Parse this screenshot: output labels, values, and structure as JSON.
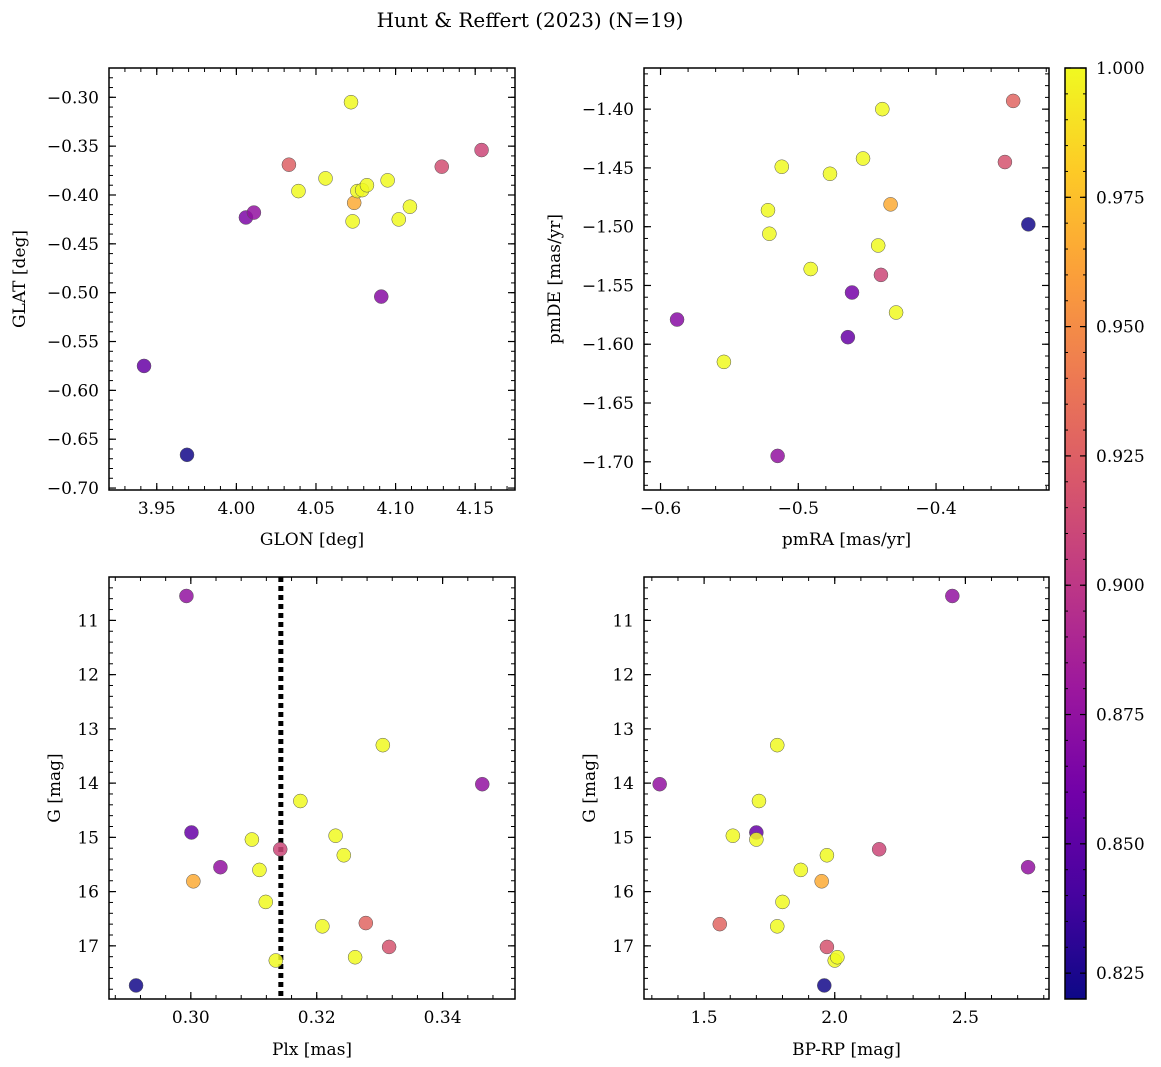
{
  "figure": {
    "title": "Hunt & Reffert (2023) (N=19)"
  },
  "colormap": {
    "name": "plasma",
    "range": [
      0.82,
      1.0
    ],
    "ticks": [
      "0.825",
      "0.850",
      "0.875",
      "0.900",
      "0.925",
      "0.950",
      "0.975",
      "1.000"
    ],
    "tick_values": [
      0.825,
      0.85,
      0.875,
      0.9,
      0.925,
      0.95,
      0.975,
      1.0
    ],
    "stops": [
      "#0d0887",
      "#46039f",
      "#7201a8",
      "#9c179e",
      "#bd3786",
      "#d8576b",
      "#ed7953",
      "#fb9f3a",
      "#fdca26",
      "#f0f921"
    ]
  },
  "chart_data": [
    {
      "type": "scatter",
      "id": "glon-glat",
      "xlabel": "GLON [deg]",
      "ylabel": "GLAT [deg]",
      "xlim": [
        3.92,
        4.175
      ],
      "ylim": [
        -0.702,
        -0.27
      ],
      "y_inverted": false,
      "xticks": [
        3.95,
        4.0,
        4.05,
        4.1,
        4.15
      ],
      "xtick_labels": [
        "3.95",
        "4.00",
        "4.05",
        "4.10",
        "4.15"
      ],
      "yticks": [
        -0.7,
        -0.65,
        -0.6,
        -0.55,
        -0.5,
        -0.45,
        -0.4,
        -0.35,
        -0.3
      ],
      "ytick_labels": [
        "−0.70",
        "−0.65",
        "−0.60",
        "−0.55",
        "−0.50",
        "−0.45",
        "−0.40",
        "−0.35",
        "−0.30"
      ],
      "points": [
        {
          "x": 3.942,
          "y": -0.575,
          "c": 0.855
        },
        {
          "x": 3.969,
          "y": -0.666,
          "c": 0.822
        },
        {
          "x": 4.006,
          "y": -0.423,
          "c": 0.865
        },
        {
          "x": 4.011,
          "y": -0.418,
          "c": 0.875
        },
        {
          "x": 4.033,
          "y": -0.369,
          "c": 0.925
        },
        {
          "x": 4.039,
          "y": -0.396,
          "c": 1.0
        },
        {
          "x": 4.056,
          "y": -0.383,
          "c": 1.0
        },
        {
          "x": 4.072,
          "y": -0.305,
          "c": 1.0
        },
        {
          "x": 4.073,
          "y": -0.427,
          "c": 1.0
        },
        {
          "x": 4.074,
          "y": -0.408,
          "c": 0.965
        },
        {
          "x": 4.076,
          "y": -0.396,
          "c": 1.0
        },
        {
          "x": 4.079,
          "y": -0.395,
          "c": 1.0
        },
        {
          "x": 4.082,
          "y": -0.39,
          "c": 1.0
        },
        {
          "x": 4.091,
          "y": -0.504,
          "c": 0.87
        },
        {
          "x": 4.095,
          "y": -0.385,
          "c": 1.0
        },
        {
          "x": 4.102,
          "y": -0.425,
          "c": 1.0
        },
        {
          "x": 4.109,
          "y": -0.412,
          "c": 1.0
        },
        {
          "x": 4.129,
          "y": -0.371,
          "c": 0.915
        },
        {
          "x": 4.154,
          "y": -0.354,
          "c": 0.91
        }
      ]
    },
    {
      "type": "scatter",
      "id": "pmra-pmde",
      "xlabel": "pmRA [mas/yr]",
      "ylabel": "pmDE [mas/yr]",
      "xlim": [
        -0.612,
        -0.318
      ],
      "ylim": [
        -1.724,
        -1.365
      ],
      "y_inverted": false,
      "xticks": [
        -0.6,
        -0.5,
        -0.4
      ],
      "xtick_labels": [
        "−0.6",
        "−0.5",
        "−0.4"
      ],
      "yticks": [
        -1.7,
        -1.65,
        -1.6,
        -1.55,
        -1.5,
        -1.45,
        -1.4
      ],
      "ytick_labels": [
        "−1.70",
        "−1.65",
        "−1.60",
        "−1.55",
        "−1.50",
        "−1.45",
        "−1.40"
      ],
      "points": [
        {
          "x": -0.588,
          "y": -1.579,
          "c": 0.87
        },
        {
          "x": -0.554,
          "y": -1.615,
          "c": 1.0
        },
        {
          "x": -0.522,
          "y": -1.486,
          "c": 1.0
        },
        {
          "x": -0.521,
          "y": -1.506,
          "c": 1.0
        },
        {
          "x": -0.515,
          "y": -1.695,
          "c": 0.875
        },
        {
          "x": -0.512,
          "y": -1.449,
          "c": 1.0
        },
        {
          "x": -0.491,
          "y": -1.536,
          "c": 1.0
        },
        {
          "x": -0.477,
          "y": -1.455,
          "c": 1.0
        },
        {
          "x": -0.464,
          "y": -1.594,
          "c": 0.855
        },
        {
          "x": -0.461,
          "y": -1.556,
          "c": 0.862
        },
        {
          "x": -0.453,
          "y": -1.442,
          "c": 1.0
        },
        {
          "x": -0.442,
          "y": -1.516,
          "c": 1.0
        },
        {
          "x": -0.44,
          "y": -1.541,
          "c": 0.91
        },
        {
          "x": -0.439,
          "y": -1.4,
          "c": 1.0
        },
        {
          "x": -0.433,
          "y": -1.481,
          "c": 0.965
        },
        {
          "x": -0.429,
          "y": -1.573,
          "c": 1.0
        },
        {
          "x": -0.35,
          "y": -1.445,
          "c": 0.918
        },
        {
          "x": -0.344,
          "y": -1.393,
          "c": 0.928
        },
        {
          "x": -0.333,
          "y": -1.498,
          "c": 0.822
        }
      ]
    },
    {
      "type": "scatter",
      "id": "plx-g",
      "xlabel": "Plx [mas]",
      "ylabel": "G [mag]",
      "xlim": [
        0.287,
        0.3515
      ],
      "ylim": [
        10.2,
        17.98
      ],
      "y_inverted": true,
      "xticks": [
        0.3,
        0.32,
        0.34
      ],
      "xtick_labels": [
        "0.30",
        "0.32",
        "0.34"
      ],
      "yticks": [
        11,
        12,
        13,
        14,
        15,
        16,
        17
      ],
      "ytick_labels": [
        "11",
        "12",
        "13",
        "14",
        "15",
        "16",
        "17"
      ],
      "vline": {
        "x": 0.3143,
        "style": "dotted"
      },
      "points": [
        {
          "x": 0.2913,
          "y": 17.73,
          "c": 0.822
        },
        {
          "x": 0.2993,
          "y": 10.55,
          "c": 0.875
        },
        {
          "x": 0.3001,
          "y": 14.91,
          "c": 0.855
        },
        {
          "x": 0.3004,
          "y": 15.81,
          "c": 0.965
        },
        {
          "x": 0.3047,
          "y": 15.55,
          "c": 0.875
        },
        {
          "x": 0.3097,
          "y": 15.04,
          "c": 1.0
        },
        {
          "x": 0.3109,
          "y": 15.6,
          "c": 1.0
        },
        {
          "x": 0.3119,
          "y": 16.19,
          "c": 1.0
        },
        {
          "x": 0.3135,
          "y": 17.27,
          "c": 1.0
        },
        {
          "x": 0.3142,
          "y": 15.22,
          "c": 0.91
        },
        {
          "x": 0.3174,
          "y": 14.33,
          "c": 1.0
        },
        {
          "x": 0.3209,
          "y": 16.64,
          "c": 1.0
        },
        {
          "x": 0.323,
          "y": 14.97,
          "c": 1.0
        },
        {
          "x": 0.3243,
          "y": 15.33,
          "c": 1.0
        },
        {
          "x": 0.3261,
          "y": 17.21,
          "c": 1.0
        },
        {
          "x": 0.3278,
          "y": 16.58,
          "c": 0.928
        },
        {
          "x": 0.3305,
          "y": 13.3,
          "c": 1.0
        },
        {
          "x": 0.3315,
          "y": 17.02,
          "c": 0.918
        },
        {
          "x": 0.3463,
          "y": 14.02,
          "c": 0.875
        }
      ]
    },
    {
      "type": "scatter",
      "id": "bprp-g",
      "xlabel": "BP-RP [mag]",
      "ylabel": "G [mag]",
      "xlim": [
        1.27,
        2.82
      ],
      "ylim": [
        10.2,
        17.98
      ],
      "y_inverted": true,
      "xticks": [
        1.5,
        2.0,
        2.5
      ],
      "xtick_labels": [
        "1.5",
        "2.0",
        "2.5"
      ],
      "yticks": [
        11,
        12,
        13,
        14,
        15,
        16,
        17
      ],
      "ytick_labels": [
        "11",
        "12",
        "13",
        "14",
        "15",
        "16",
        "17"
      ],
      "points": [
        {
          "x": 1.33,
          "y": 14.02,
          "c": 0.875
        },
        {
          "x": 1.56,
          "y": 16.6,
          "c": 0.928
        },
        {
          "x": 1.61,
          "y": 14.97,
          "c": 1.0
        },
        {
          "x": 1.7,
          "y": 14.91,
          "c": 0.855
        },
        {
          "x": 1.7,
          "y": 15.04,
          "c": 1.0
        },
        {
          "x": 1.71,
          "y": 14.33,
          "c": 1.0
        },
        {
          "x": 1.78,
          "y": 13.3,
          "c": 1.0
        },
        {
          "x": 1.78,
          "y": 16.64,
          "c": 1.0
        },
        {
          "x": 1.8,
          "y": 16.19,
          "c": 1.0
        },
        {
          "x": 1.87,
          "y": 15.6,
          "c": 1.0
        },
        {
          "x": 1.95,
          "y": 15.81,
          "c": 0.965
        },
        {
          "x": 1.96,
          "y": 17.73,
          "c": 0.822
        },
        {
          "x": 1.97,
          "y": 17.02,
          "c": 0.918
        },
        {
          "x": 1.97,
          "y": 15.33,
          "c": 1.0
        },
        {
          "x": 2.0,
          "y": 17.27,
          "c": 1.0
        },
        {
          "x": 2.01,
          "y": 17.21,
          "c": 1.0
        },
        {
          "x": 2.17,
          "y": 15.22,
          "c": 0.91
        },
        {
          "x": 2.45,
          "y": 10.55,
          "c": 0.875
        },
        {
          "x": 2.74,
          "y": 15.55,
          "c": 0.875
        }
      ]
    }
  ]
}
